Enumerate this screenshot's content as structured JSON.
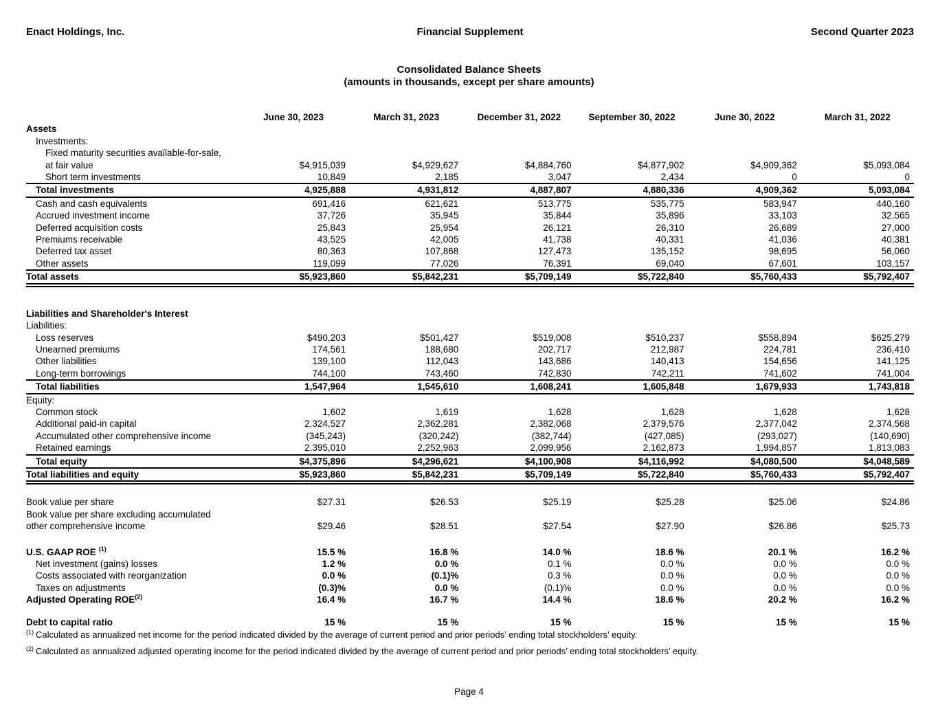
{
  "page": {
    "header_left": "Enact Holdings, Inc.",
    "header_center": "Financial Supplement",
    "header_right": "Second Quarter 2023",
    "title": "Consolidated Balance Sheets",
    "subtitle": "(amounts in thousands, except per share amounts)",
    "page_number": "Page 4"
  },
  "table": {
    "columns": [
      "June 30, 2023",
      "March 31, 2023",
      "December 31, 2022",
      "September 30, 2022",
      "June 30, 2022",
      "March 31, 2022"
    ],
    "rows": [
      {
        "label": "Assets",
        "bold": true
      },
      {
        "label": "Investments:",
        "indent": 1
      },
      {
        "label": "Fixed maturity securities available-for-sale,",
        "indent": 2
      },
      {
        "label": "at fair value",
        "indent": 2,
        "values": [
          "$4,915,039",
          "$4,929,627",
          "$4,884,760",
          "$4,877,902",
          "$4,909,362",
          "$5,093,084"
        ]
      },
      {
        "label": "Short term investments",
        "indent": 2,
        "values": [
          "10,849",
          "2,185",
          "3,047",
          "2,434",
          "0",
          "0"
        ]
      },
      {
        "label": "Total investments",
        "indent": 1,
        "bold": true,
        "values_bold": true,
        "rule_top": "single",
        "rule_bottom": "single",
        "values": [
          "4,925,888",
          "4,931,812",
          "4,887,807",
          "4,880,336",
          "4,909,362",
          "5,093,084"
        ]
      },
      {
        "label": "Cash and cash equivalents",
        "indent": 1,
        "values": [
          "691,416",
          "621,621",
          "513,775",
          "535,775",
          "583,947",
          "440,160"
        ]
      },
      {
        "label": "Accrued investment income",
        "indent": 1,
        "values": [
          "37,726",
          "35,945",
          "35,844",
          "35,896",
          "33,103",
          "32,565"
        ]
      },
      {
        "label": "Deferred acquisition costs",
        "indent": 1,
        "values": [
          "25,843",
          "25,954",
          "26,121",
          "26,310",
          "26,689",
          "27,000"
        ]
      },
      {
        "label": "Premiums receivable",
        "indent": 1,
        "values": [
          "43,525",
          "42,005",
          "41,738",
          "40,331",
          "41,036",
          "40,381"
        ]
      },
      {
        "label": "Deferred tax asset",
        "indent": 1,
        "values": [
          "80,363",
          "107,868",
          "127,473",
          "135,152",
          "98,695",
          "56,060"
        ]
      },
      {
        "label": "Other assets",
        "indent": 1,
        "values": [
          "119,099",
          "77,026",
          "76,391",
          "69,040",
          "67,601",
          "103,157"
        ]
      },
      {
        "label": "Total assets",
        "bold": true,
        "values_bold": true,
        "rule_top": "single",
        "rule_bottom": "double",
        "values": [
          "$5,923,860",
          "$5,842,231",
          "$5,709,149",
          "$5,722,840",
          "$5,760,433",
          "$5,792,407"
        ]
      },
      {
        "spacer": 30
      },
      {
        "label": "Liabilities and Shareholder's Interest",
        "bold": true
      },
      {
        "label": "Liabilities:"
      },
      {
        "label": "Loss reserves",
        "indent": 1,
        "values": [
          "$490,203",
          "$501,427",
          "$519,008",
          "$510,237",
          "$558,894",
          "$625,279"
        ]
      },
      {
        "label": "Unearned premiums",
        "indent": 1,
        "values": [
          "174,561",
          "188,680",
          "202,717",
          "212,987",
          "224,781",
          "236,410"
        ]
      },
      {
        "label": "Other liabilities",
        "indent": 1,
        "values": [
          "139,100",
          "112,043",
          "143,686",
          "140,413",
          "154,656",
          "141,125"
        ]
      },
      {
        "label": "Long-term borrowings",
        "indent": 1,
        "values": [
          "744,100",
          "743,460",
          "742,830",
          "742,211",
          "741,602",
          "741,004"
        ]
      },
      {
        "label": "Total liabilities",
        "indent": 1,
        "bold": true,
        "values_bold": true,
        "rule_top": "single",
        "rule_bottom": "single",
        "values": [
          "1,547,964",
          "1,545,610",
          "1,608,241",
          "1,605,848",
          "1,679,933",
          "1,743,818"
        ]
      },
      {
        "label": "Equity:"
      },
      {
        "label": "Common stock",
        "indent": 1,
        "values": [
          "1,602",
          "1,619",
          "1,628",
          "1,628",
          "1,628",
          "1,628"
        ]
      },
      {
        "label": "Additional paid-in capital",
        "indent": 1,
        "values": [
          "2,324,527",
          "2,362,281",
          "2,382,068",
          "2,379,576",
          "2,377,042",
          "2,374,568"
        ]
      },
      {
        "label": "Accumulated other comprehensive income",
        "indent": 1,
        "values": [
          "(345,243)",
          "(320,242)",
          "(382,744)",
          "(427,085)",
          "(293,027)",
          "(140,690)"
        ]
      },
      {
        "label": "Retained earnings",
        "indent": 1,
        "values": [
          "2,395,010",
          "2,252,963",
          "2,099,956",
          "2,162,873",
          "1,994,857",
          "1,813,083"
        ]
      },
      {
        "label": "Total equity",
        "indent": 1,
        "bold": true,
        "values_bold": true,
        "rule_top": "single",
        "rule_bottom": "single",
        "values": [
          "$4,375,896",
          "$4,296,621",
          "$4,100,908",
          "$4,116,992",
          "$4,080,500",
          "$4,048,589"
        ]
      },
      {
        "label": "Total liabilities and equity",
        "bold": true,
        "values_bold": true,
        "rule_bottom": "double",
        "values": [
          "$5,923,860",
          "$5,842,231",
          "$5,709,149",
          "$5,722,840",
          "$5,760,433",
          "$5,792,407"
        ]
      },
      {
        "spacer": 17
      },
      {
        "label": "Book value per share",
        "values": [
          "$27.31",
          "$26.53",
          "$25.19",
          "$25.28",
          "$25.06",
          "$24.86"
        ]
      },
      {
        "label": "Book value per share excluding accumulated"
      },
      {
        "label": "other comprehensive income",
        "values": [
          "$29.46",
          "$28.51",
          "$27.54",
          "$27.90",
          "$26.86",
          "$25.73"
        ]
      },
      {
        "spacer": 20
      },
      {
        "label": "U.S. GAAP ROE",
        "sup": "(1)",
        "sup_gap": true,
        "bold": true,
        "values_bold": true,
        "values": [
          "15.5 %",
          "16.8 %",
          "14.0 %",
          "18.6 %",
          "20.1 %",
          "16.2 %"
        ]
      },
      {
        "label": "Net investment (gains) losses",
        "indent": 1,
        "bold_cols": [
          0,
          1
        ],
        "values": [
          "1.2 %",
          "0.0 %",
          "0.1 %",
          "0.0 %",
          "0.0 %",
          "0.0 %"
        ]
      },
      {
        "label": "Costs associated with reorganization",
        "indent": 1,
        "bold_cols": [
          0,
          1
        ],
        "values": [
          "0.0 %",
          "(0.1)%",
          "0.3 %",
          "0.0 %",
          "0.0 %",
          "0.0 %"
        ]
      },
      {
        "label": "Taxes on adjustments",
        "indent": 1,
        "bold_cols": [
          0,
          1
        ],
        "values": [
          "(0.3)%",
          "0.0 %",
          "(0.1)%",
          "0.0 %",
          "0.0 %",
          "0.0 %"
        ]
      },
      {
        "label": "Adjusted Operating ROE",
        "sup": "(2)",
        "bold": true,
        "values_bold": true,
        "values": [
          "16.4 %",
          "16.7 %",
          "14.4 %",
          "18.6 %",
          "20.2 %",
          "16.2 %"
        ]
      },
      {
        "spacer": 15
      },
      {
        "label": "Debt to capital ratio",
        "bold": true,
        "values_bold": true,
        "values": [
          "15 %",
          "15 %",
          "15 %",
          "15 %",
          "15 %",
          "15 %"
        ]
      }
    ]
  },
  "footnotes": [
    {
      "sup": "(1)",
      "text": "Calculated as annualized net income for the period indicated divided by the average of current period and prior periods’ ending total stockholders’ equity."
    },
    {
      "sup": "(2)",
      "text": "Calculated as annualized adjusted operating income for the period indicated divided by the average of current period and prior periods’ ending total stockholders’ equity."
    }
  ]
}
